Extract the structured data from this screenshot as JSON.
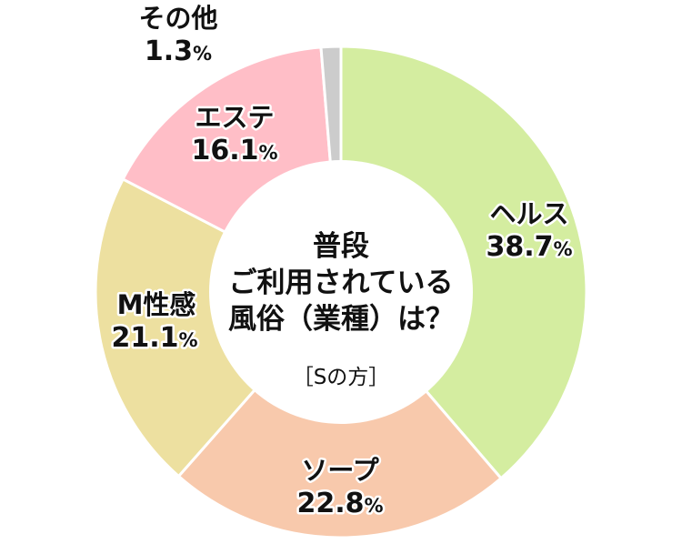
{
  "chart_data": {
    "type": "pie",
    "variant": "donut",
    "title_lines": [
      "普段",
      "ご利用されている",
      "風俗（業種）は？"
    ],
    "subtitle": "［Sの方］",
    "unit": "%",
    "categories": [
      "ヘルス",
      "ソープ",
      "M性感",
      "エステ",
      "その他"
    ],
    "values": [
      38.7,
      22.8,
      21.1,
      16.1,
      1.3
    ],
    "colors": [
      "#d4eda0",
      "#f8c9ac",
      "#ede0a0",
      "#ffbec7",
      "#cccccc"
    ],
    "start_angle": "12 o'clock",
    "direction": "clockwise"
  }
}
